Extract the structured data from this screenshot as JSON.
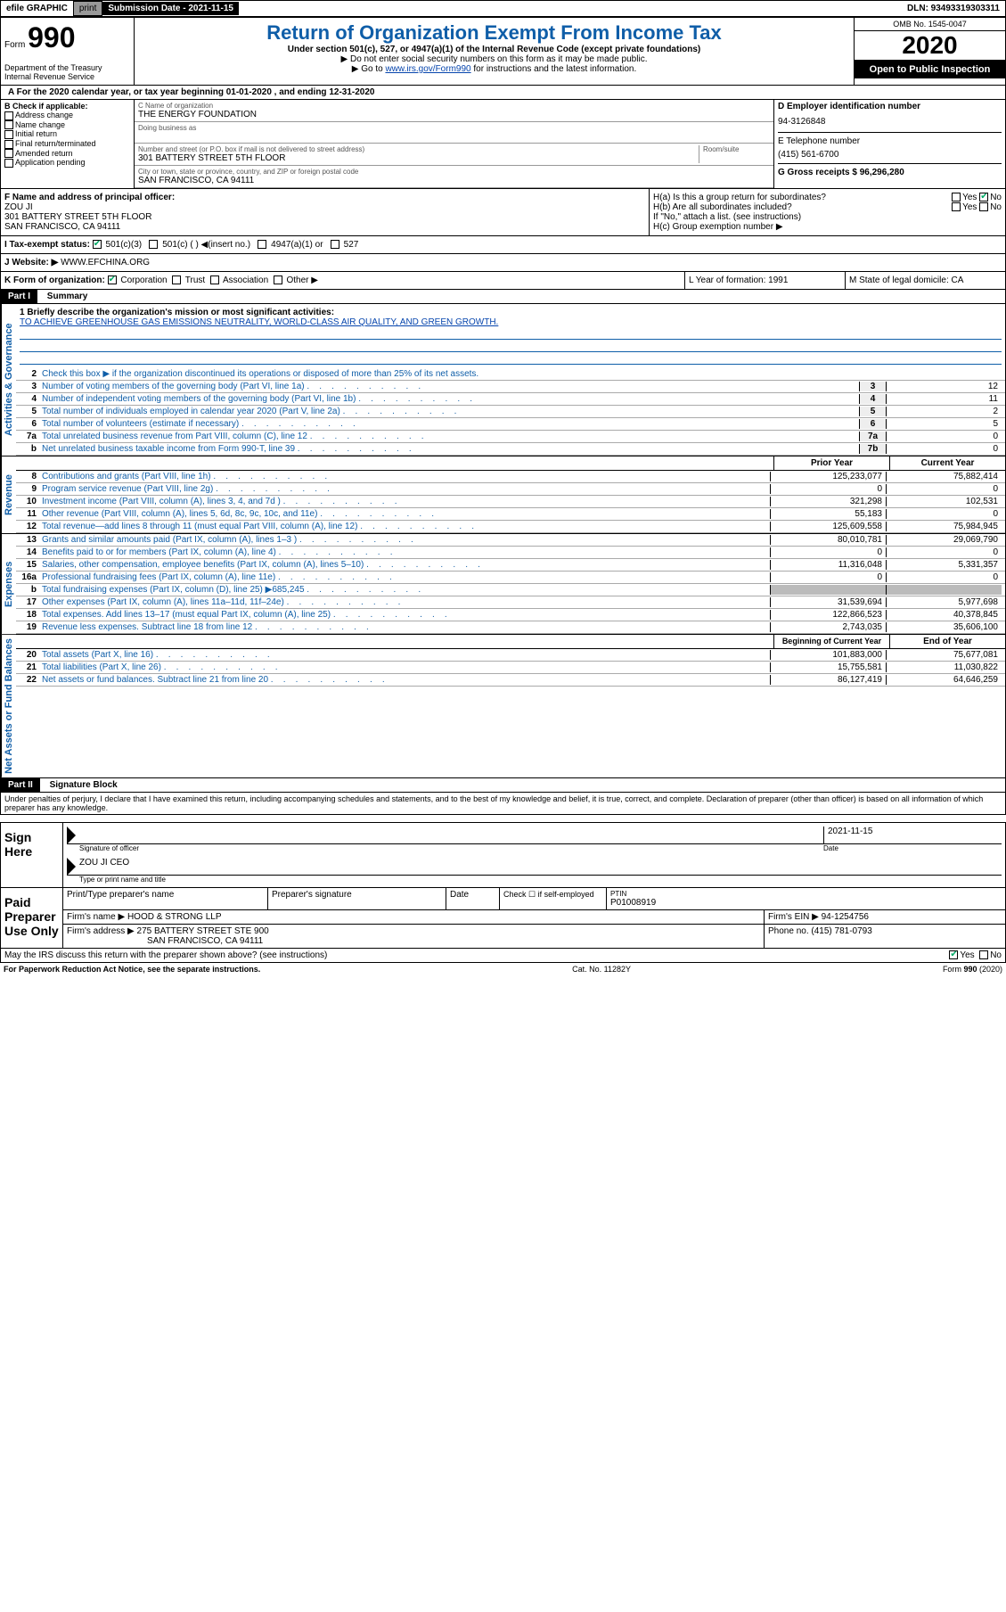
{
  "topbar": {
    "efile": "efile GRAPHIC",
    "print": "print",
    "submission": "Submission Date - 2021-11-15",
    "dln": "DLN: 93493319303311"
  },
  "header": {
    "form_prefix": "Form",
    "form_number": "990",
    "dept": "Department of the Treasury\nInternal Revenue Service",
    "title": "Return of Organization Exempt From Income Tax",
    "subtitle": "Under section 501(c), 527, or 4947(a)(1) of the Internal Revenue Code (except private foundations)",
    "instr1": "▶ Do not enter social security numbers on this form as it may be made public.",
    "instr2_prefix": "▶ Go to ",
    "instr2_link": "www.irs.gov/Form990",
    "instr2_suffix": " for instructions and the latest information.",
    "omb": "OMB No. 1545-0047",
    "year": "2020",
    "open": "Open to Public Inspection"
  },
  "section_a": "A For the 2020 calendar year, or tax year beginning 01-01-2020   , and ending 12-31-2020",
  "col_b": {
    "label": "B Check if applicable:",
    "items": [
      "Address change",
      "Name change",
      "Initial return",
      "Final return/terminated",
      "Amended return",
      "Application pending"
    ]
  },
  "col_c": {
    "name_label": "C Name of organization",
    "name": "THE ENERGY FOUNDATION",
    "dba_label": "Doing business as",
    "street_label": "Number and street (or P.O. box if mail is not delivered to street address)",
    "room_label": "Room/suite",
    "street": "301 BATTERY STREET 5TH FLOOR",
    "city_label": "City or town, state or province, country, and ZIP or foreign postal code",
    "city": "SAN FRANCISCO, CA  94111"
  },
  "col_d": {
    "ein_label": "D Employer identification number",
    "ein": "94-3126848",
    "phone_label": "E Telephone number",
    "phone": "(415) 561-6700",
    "gross_label": "G Gross receipts $ 96,296,280"
  },
  "col_f": {
    "label": "F  Name and address of principal officer:",
    "name": "ZOU JI",
    "addr1": "301 BATTERY STREET 5TH FLOOR",
    "addr2": "SAN FRANCISCO, CA  94111"
  },
  "col_h": {
    "ha": "H(a)  Is this a group return for subordinates?",
    "hb": "H(b)  Are all subordinates included?",
    "hb_note": "If \"No,\" attach a list. (see instructions)",
    "hc": "H(c)  Group exemption number ▶"
  },
  "row_i": {
    "label": "I   Tax-exempt status:",
    "opts": [
      "501(c)(3)",
      "501(c) (  ) ◀(insert no.)",
      "4947(a)(1) or",
      "527"
    ]
  },
  "row_j": {
    "label": "J   Website: ▶",
    "value": "  WWW.EFCHINA.ORG"
  },
  "row_k": {
    "label": "K Form of organization:",
    "opts": [
      "Corporation",
      "Trust",
      "Association",
      "Other ▶"
    ]
  },
  "row_l": {
    "label": "L Year of formation: 1991"
  },
  "row_m": {
    "label": "M State of legal domicile: CA"
  },
  "part1": {
    "header": "Part I",
    "title": "Summary",
    "line1_label": "1  Briefly describe the organization's mission or most significant activities:",
    "mission": "TO ACHIEVE GREENHOUSE GAS EMISSIONS NEUTRALITY, WORLD-CLASS AIR QUALITY, AND GREEN GROWTH.",
    "line2": "Check this box ▶ ☑  if the organization discontinued its operations or disposed of more than 25% of its net assets.",
    "prior_year": "Prior Year",
    "current_year": "Current Year",
    "beg_year": "Beginning of Current Year",
    "end_year": "End of Year"
  },
  "governance_lines": [
    {
      "n": "2",
      "d": "Check this box ▶ if the organization discontinued its operations or disposed of more than 25% of its net assets."
    },
    {
      "n": "3",
      "d": "Number of voting members of the governing body (Part VI, line 1a)",
      "c": "3",
      "v": "12"
    },
    {
      "n": "4",
      "d": "Number of independent voting members of the governing body (Part VI, line 1b)",
      "c": "4",
      "v": "11"
    },
    {
      "n": "5",
      "d": "Total number of individuals employed in calendar year 2020 (Part V, line 2a)",
      "c": "5",
      "v": "2"
    },
    {
      "n": "6",
      "d": "Total number of volunteers (estimate if necessary)",
      "c": "6",
      "v": "5"
    },
    {
      "n": "7a",
      "d": "Total unrelated business revenue from Part VIII, column (C), line 12",
      "c": "7a",
      "v": "0"
    },
    {
      "n": "b",
      "d": "Net unrelated business taxable income from Form 990-T, line 39",
      "c": "7b",
      "v": "0"
    }
  ],
  "revenue_lines": [
    {
      "n": "8",
      "d": "Contributions and grants (Part VIII, line 1h)",
      "p": "125,233,077",
      "c": "75,882,414"
    },
    {
      "n": "9",
      "d": "Program service revenue (Part VIII, line 2g)",
      "p": "0",
      "c": "0"
    },
    {
      "n": "10",
      "d": "Investment income (Part VIII, column (A), lines 3, 4, and 7d )",
      "p": "321,298",
      "c": "102,531"
    },
    {
      "n": "11",
      "d": "Other revenue (Part VIII, column (A), lines 5, 6d, 8c, 9c, 10c, and 11e)",
      "p": "55,183",
      "c": "0"
    },
    {
      "n": "12",
      "d": "Total revenue—add lines 8 through 11 (must equal Part VIII, column (A), line 12)",
      "p": "125,609,558",
      "c": "75,984,945"
    }
  ],
  "expense_lines": [
    {
      "n": "13",
      "d": "Grants and similar amounts paid (Part IX, column (A), lines 1–3 )",
      "p": "80,010,781",
      "c": "29,069,790"
    },
    {
      "n": "14",
      "d": "Benefits paid to or for members (Part IX, column (A), line 4)",
      "p": "0",
      "c": "0"
    },
    {
      "n": "15",
      "d": "Salaries, other compensation, employee benefits (Part IX, column (A), lines 5–10)",
      "p": "11,316,048",
      "c": "5,331,357"
    },
    {
      "n": "16a",
      "d": "Professional fundraising fees (Part IX, column (A), line 11e)",
      "p": "0",
      "c": "0"
    },
    {
      "n": "b",
      "d": "Total fundraising expenses (Part IX, column (D), line 25) ▶685,245",
      "p": "",
      "c": "",
      "grey": true
    },
    {
      "n": "17",
      "d": "Other expenses (Part IX, column (A), lines 11a–11d, 11f–24e)",
      "p": "31,539,694",
      "c": "5,977,698"
    },
    {
      "n": "18",
      "d": "Total expenses. Add lines 13–17 (must equal Part IX, column (A), line 25)",
      "p": "122,866,523",
      "c": "40,378,845"
    },
    {
      "n": "19",
      "d": "Revenue less expenses. Subtract line 18 from line 12",
      "p": "2,743,035",
      "c": "35,606,100"
    }
  ],
  "asset_lines": [
    {
      "n": "20",
      "d": "Total assets (Part X, line 16)",
      "p": "101,883,000",
      "c": "75,677,081"
    },
    {
      "n": "21",
      "d": "Total liabilities (Part X, line 26)",
      "p": "15,755,581",
      "c": "11,030,822"
    },
    {
      "n": "22",
      "d": "Net assets or fund balances. Subtract line 21 from line 20",
      "p": "86,127,419",
      "c": "64,646,259"
    }
  ],
  "part2": {
    "header": "Part II",
    "title": "Signature Block",
    "perjury": "Under penalties of perjury, I declare that I have examined this return, including accompanying schedules and statements, and to the best of my knowledge and belief, it is true, correct, and complete. Declaration of preparer (other than officer) is based on all information of which preparer has any knowledge."
  },
  "sign_here": {
    "label": "Sign Here",
    "sig_of_officer": "Signature of officer",
    "date": "2021-11-15",
    "date_label": "Date",
    "name": "ZOU JI CEO",
    "name_label": "Type or print name and title"
  },
  "paid_prep": {
    "label": "Paid Preparer Use Only",
    "col1": "Print/Type preparer's name",
    "col2": "Preparer's signature",
    "col3": "Date",
    "col4": "Check ☐ if self-employed",
    "col5_label": "PTIN",
    "ptin": "P01008919",
    "firm_name_label": "Firm's name      ▶",
    "firm_name": "HOOD & STRONG LLP",
    "firm_ein_label": "Firm's EIN ▶",
    "firm_ein": "94-1254756",
    "firm_addr_label": "Firm's address ▶",
    "firm_addr1": "275 BATTERY STREET STE 900",
    "firm_addr2": "SAN FRANCISCO, CA  94111",
    "phone_label": "Phone no.",
    "phone": "(415) 781-0793"
  },
  "discuss": "May the IRS discuss this return with the preparer shown above? (see instructions)",
  "footer": {
    "left": "For Paperwork Reduction Act Notice, see the separate instructions.",
    "mid": "Cat. No. 11282Y",
    "right": "Form 990 (2020)"
  },
  "labels": {
    "activities": "Activities & Governance",
    "revenue": "Revenue",
    "expenses": "Expenses",
    "assets": "Net Assets or Fund Balances"
  }
}
